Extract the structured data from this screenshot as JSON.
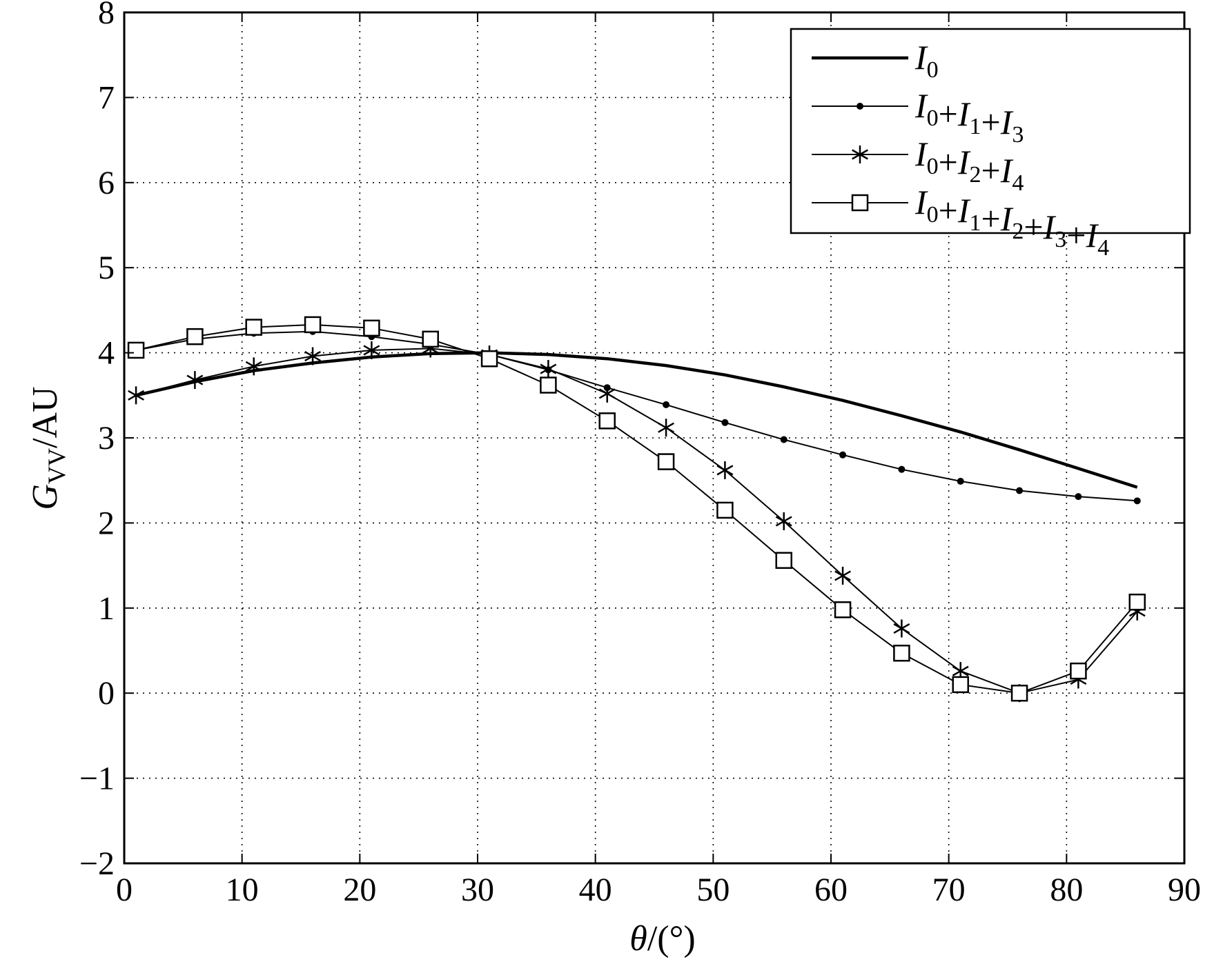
{
  "chart_data": {
    "type": "line",
    "xlabel": "θ/(°)",
    "ylabel": "G_VV/AU",
    "xlim": [
      0,
      90
    ],
    "ylim": [
      -2,
      8
    ],
    "xticks": [
      0,
      10,
      20,
      30,
      40,
      50,
      60,
      70,
      80,
      90
    ],
    "yticks": [
      -2,
      -1,
      0,
      1,
      2,
      3,
      4,
      5,
      6,
      7,
      8
    ],
    "xtick_labels": [
      "0",
      "10",
      "20",
      "30",
      "40",
      "50",
      "60",
      "70",
      "80",
      "90"
    ],
    "ytick_labels": [
      "−2",
      "−1",
      "0",
      "1",
      "2",
      "3",
      "4",
      "5",
      "6",
      "7",
      "8"
    ],
    "grid": true,
    "legend_position": "top-right",
    "x": [
      1,
      6,
      11,
      16,
      21,
      26,
      31,
      36,
      41,
      46,
      51,
      56,
      61,
      66,
      71,
      76,
      81,
      86
    ],
    "series": [
      {
        "name": "I0",
        "marker": "none",
        "line_weight": "thick",
        "values": [
          3.5,
          3.66,
          3.79,
          3.88,
          3.95,
          3.99,
          4.0,
          3.98,
          3.93,
          3.85,
          3.74,
          3.6,
          3.44,
          3.26,
          3.07,
          2.86,
          2.64,
          2.42
        ]
      },
      {
        "name": "I0+I1+I3",
        "marker": "dot",
        "values": [
          4.03,
          4.16,
          4.23,
          4.25,
          4.19,
          4.1,
          3.98,
          3.8,
          3.59,
          3.39,
          3.18,
          2.98,
          2.8,
          2.63,
          2.49,
          2.38,
          2.31,
          2.26
        ]
      },
      {
        "name": "I0+I2+I4",
        "marker": "asterisk",
        "values": [
          3.5,
          3.68,
          3.84,
          3.96,
          4.03,
          4.05,
          3.98,
          3.81,
          3.52,
          3.12,
          2.62,
          2.02,
          1.38,
          0.76,
          0.26,
          0.0,
          0.16,
          0.96
        ]
      },
      {
        "name": "I0+I1+I2+I3+I4",
        "marker": "square",
        "values": [
          4.03,
          4.19,
          4.3,
          4.33,
          4.29,
          4.16,
          3.93,
          3.62,
          3.2,
          2.72,
          2.15,
          1.56,
          0.98,
          0.47,
          0.1,
          0.0,
          0.26,
          1.07
        ]
      }
    ]
  },
  "legend": {
    "entries": [
      {
        "base": "I",
        "parts": [
          {
            "t": "I",
            "s": "0"
          }
        ]
      },
      {
        "parts": [
          {
            "t": "I",
            "s": "0"
          },
          {
            "op": "+"
          },
          {
            "t": "I",
            "s": "1"
          },
          {
            "op": "+"
          },
          {
            "t": "I",
            "s": "3"
          }
        ]
      },
      {
        "parts": [
          {
            "t": "I",
            "s": "0"
          },
          {
            "op": "+"
          },
          {
            "t": "I",
            "s": "2"
          },
          {
            "op": "+"
          },
          {
            "t": "I",
            "s": "4"
          }
        ]
      },
      {
        "parts": [
          {
            "t": "I",
            "s": "0"
          },
          {
            "op": "+"
          },
          {
            "t": "I",
            "s": "1"
          },
          {
            "op": "+"
          },
          {
            "t": "I",
            "s": "2"
          },
          {
            "op": "+"
          },
          {
            "t": "I",
            "s": "3"
          },
          {
            "op": "+"
          },
          {
            "t": "I",
            "s": "4"
          }
        ]
      }
    ]
  },
  "labels": {
    "ylabel_main": "G",
    "ylabel_sub": "VV",
    "ylabel_unit": "/AU",
    "xlabel_symbol": "θ",
    "xlabel_unit": "/(°)"
  }
}
